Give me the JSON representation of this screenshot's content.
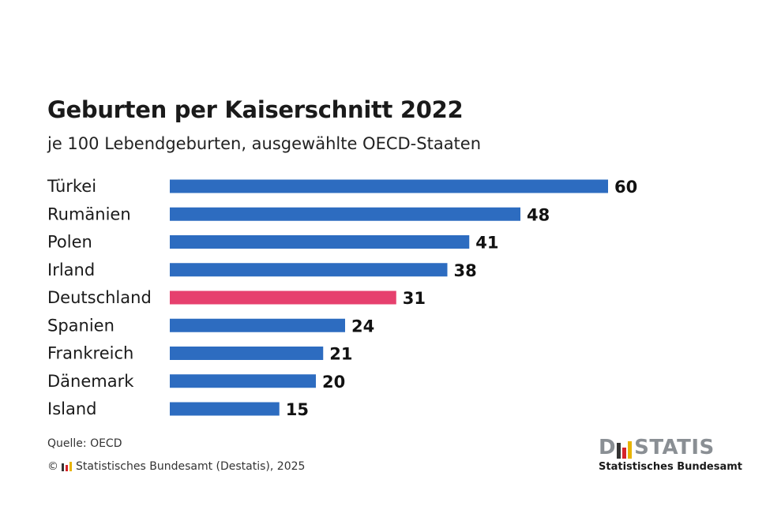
{
  "header": {
    "title": "Geburten per Kaiserschnitt 2022",
    "subtitle": "je 100 Lebendgeburten, ausgewählte OECD-Staaten"
  },
  "footer": {
    "source": "Quelle: OECD",
    "copyright_prefix": "©",
    "copyright_text": "Statistisches Bundesamt (Destatis), 2025"
  },
  "logo": {
    "word_left": "D",
    "word_right": "STATIS",
    "tagline": "Statistisches Bundesamt"
  },
  "colors": {
    "bar_default": "#2d6cc0",
    "bar_highlight": "#e6406e",
    "logo_red": "#d6232b",
    "logo_gold": "#e8b400",
    "logo_dark": "#333333"
  },
  "chart_data": {
    "type": "bar",
    "orientation": "horizontal",
    "title": "Geburten per Kaiserschnitt 2022",
    "subtitle": "je 100 Lebendgeburten, ausgewählte OECD-Staaten",
    "xlabel": "",
    "ylabel": "",
    "grid": false,
    "categories": [
      "Türkei",
      "Rumänien",
      "Polen",
      "Irland",
      "Deutschland",
      "Spanien",
      "Frankreich",
      "Dänemark",
      "Island"
    ],
    "values": [
      60,
      48,
      41,
      38,
      31,
      24,
      21,
      20,
      15
    ],
    "highlight": "Deutschland",
    "xlim": [
      0,
      60
    ]
  }
}
